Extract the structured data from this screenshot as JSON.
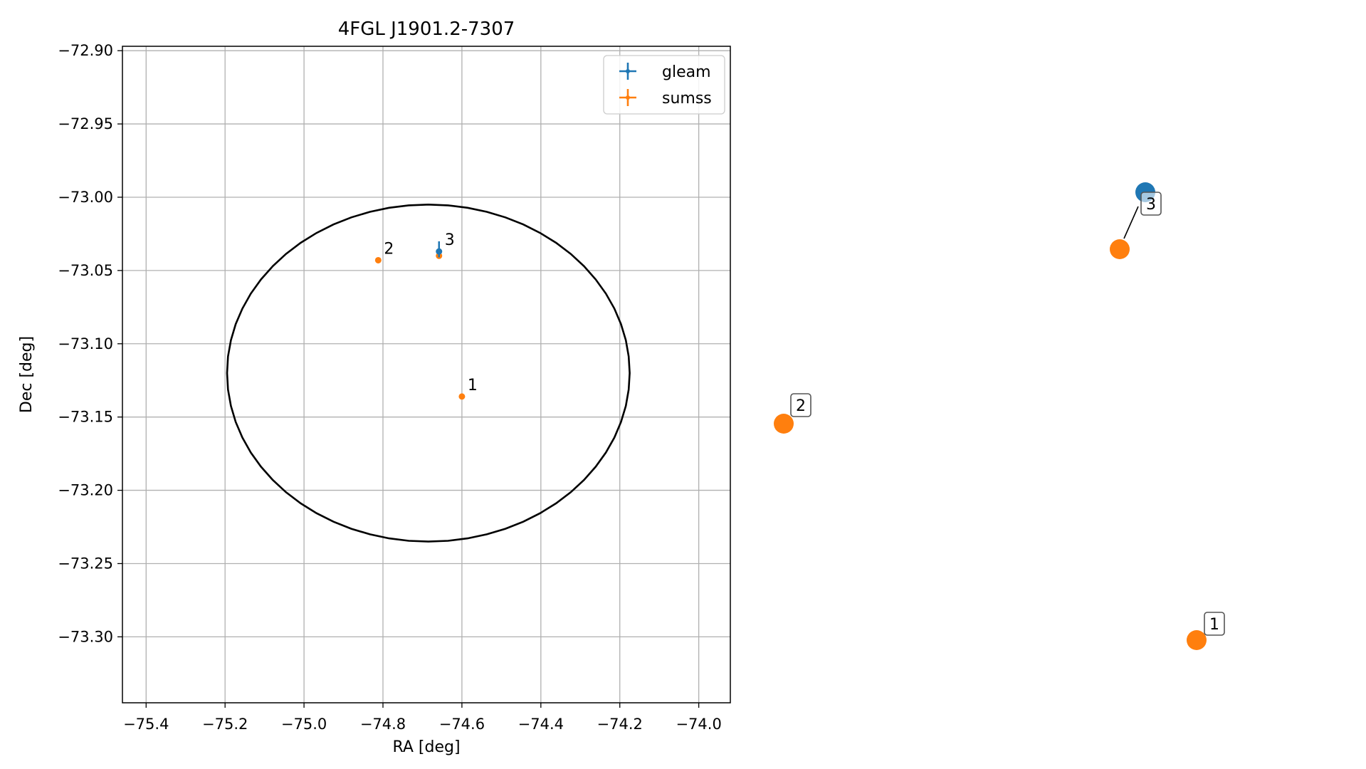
{
  "chart_data": [
    {
      "type": "scatter",
      "title": "4FGL J1901.2-7307",
      "xlabel": "RA [deg]",
      "ylabel": "Dec [deg]",
      "xlim": [
        -75.46,
        -73.92
      ],
      "ylim": [
        -73.345,
        -72.897
      ],
      "xticks": [
        -75.4,
        -75.2,
        -75.0,
        -74.8,
        -74.6,
        -74.4,
        -74.2,
        -74.0
      ],
      "xtick_labels": [
        "−75.4",
        "−75.2",
        "−75.0",
        "−74.8",
        "−74.6",
        "−74.4",
        "−74.2",
        "−74.0"
      ],
      "yticks": [
        -72.9,
        -72.95,
        -73.0,
        -73.05,
        -73.1,
        -73.15,
        -73.2,
        -73.25,
        -73.3
      ],
      "ytick_labels": [
        "−72.90",
        "−72.95",
        "−73.00",
        "−73.05",
        "−73.10",
        "−73.15",
        "−73.20",
        "−73.25",
        "−73.30"
      ],
      "grid": true,
      "legend_position": "top-right",
      "ellipse": {
        "center": [
          -74.685,
          -73.12
        ],
        "semi_axis_ra": 0.51,
        "semi_axis_dec": 0.115,
        "color": "#000000"
      },
      "series": [
        {
          "name": "gleam",
          "color": "#1f77b4",
          "points": [
            {
              "x": -74.658,
              "y": -73.037,
              "xerr": 0.003,
              "yerr": 0.004
            }
          ]
        },
        {
          "name": "sumss",
          "color": "#ff7f0e",
          "points": [
            {
              "x": -74.6,
              "y": -73.136,
              "xerr": 0.002,
              "yerr": 0.002
            },
            {
              "x": -74.812,
              "y": -73.043,
              "xerr": 0.002,
              "yerr": 0.002
            },
            {
              "x": -74.658,
              "y": -73.04,
              "xerr": 0.002,
              "yerr": 0.002
            }
          ]
        }
      ],
      "annotations": [
        {
          "text": "1",
          "x": -74.6,
          "y": -73.136
        },
        {
          "text": "2",
          "x": -74.812,
          "y": -73.043
        },
        {
          "text": "3",
          "x": -74.658,
          "y": -73.037
        }
      ]
    },
    {
      "type": "scatter",
      "axes": false,
      "points": [
        {
          "label": "3",
          "series": "gleam",
          "color": "#1f77b4"
        },
        {
          "label": "3",
          "series": "sumss",
          "color": "#ff7f0e"
        },
        {
          "label": "2",
          "series": "sumss",
          "color": "#ff7f0e"
        },
        {
          "label": "1",
          "series": "sumss",
          "color": "#ff7f0e"
        }
      ],
      "labels": [
        "3",
        "2",
        "1"
      ]
    }
  ]
}
